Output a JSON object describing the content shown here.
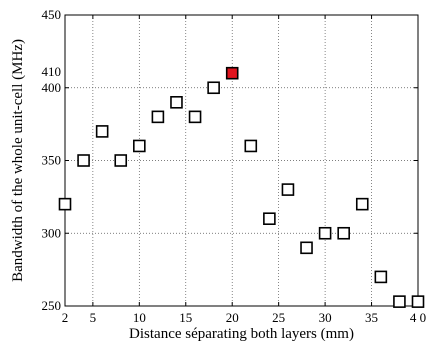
{
  "chart_data": {
    "type": "scatter",
    "title": "",
    "xlabel": "Distance séparating both layers (mm)",
    "ylabel": "Bandwidth of the whole unit-cell (MHz)",
    "xlim": [
      2,
      40
    ],
    "ylim": [
      250,
      450
    ],
    "x_ticks": [
      2,
      5,
      10,
      15,
      20,
      25,
      30,
      35,
      40
    ],
    "x_tick_labels": [
      "2",
      "5",
      "10",
      "15",
      "20",
      "25",
      "30",
      "35",
      "4 0"
    ],
    "y_ticks": [
      250,
      300,
      350,
      400,
      450
    ],
    "y_extra_label": "410",
    "grid": true,
    "grid_style": "dotted",
    "marker": "square",
    "series": [
      {
        "x": [
          2,
          4,
          6,
          8,
          10,
          12,
          14,
          16,
          18,
          20,
          22,
          24,
          26,
          28,
          30,
          32,
          34,
          36,
          38,
          40
        ],
        "y": [
          320,
          350,
          370,
          350,
          360,
          380,
          390,
          380,
          400,
          410,
          360,
          310,
          330,
          290,
          300,
          300,
          320,
          270,
          253,
          253
        ]
      }
    ],
    "highlight": {
      "x": 20,
      "y": 410
    },
    "colors": {
      "marker_edge": "#000000",
      "marker_fill": "#ffffff",
      "highlight_fill": "#e0141e",
      "grid": "#555555"
    }
  }
}
